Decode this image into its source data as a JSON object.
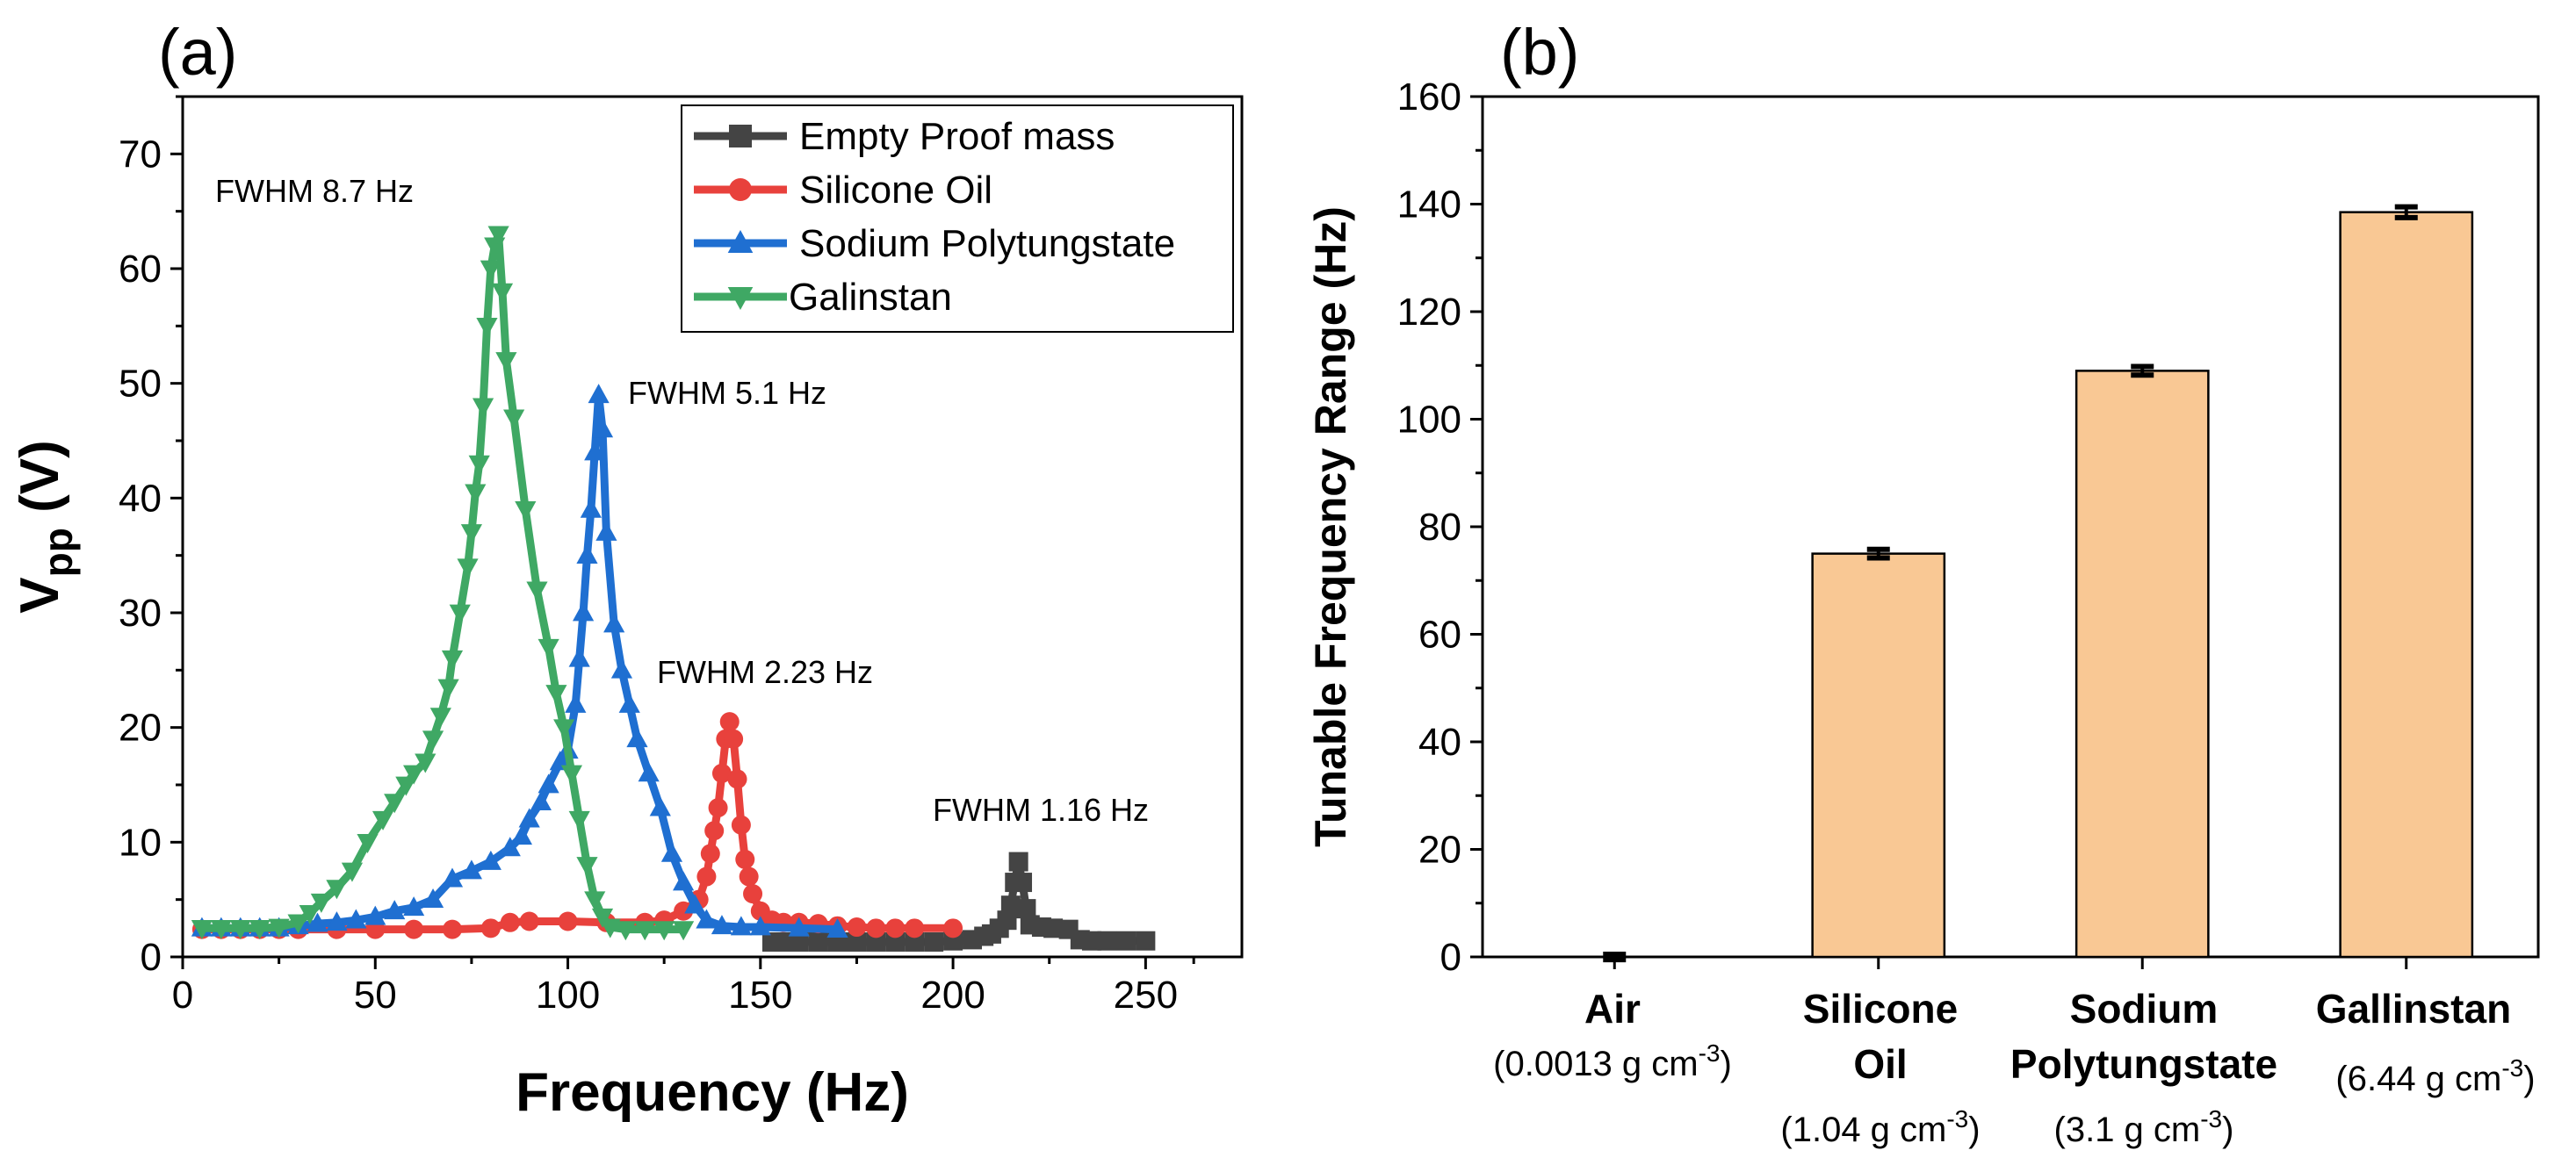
{
  "chart_data": [
    {
      "panel_label": "(a)",
      "type": "line",
      "xlabel": "Frequency (Hz)",
      "ylabel_main": "V",
      "ylabel_sub": "pp",
      "ylabel_unit": " (V)",
      "xlim": [
        0,
        275
      ],
      "ylim": [
        0,
        75
      ],
      "xticks": [
        0,
        50,
        100,
        150,
        200,
        250
      ],
      "yticks": [
        0,
        10,
        20,
        30,
        40,
        50,
        60,
        70
      ],
      "legend_position": "top-right",
      "series": [
        {
          "name": "Empty Proof mass",
          "color": "#444444",
          "marker": "square",
          "points": [
            [
              153,
              1.3
            ],
            [
              156,
              1.3
            ],
            [
              160,
              1.3
            ],
            [
              165,
              1.3
            ],
            [
              170,
              1.3
            ],
            [
              175,
              1.3
            ],
            [
              180,
              1.3
            ],
            [
              185,
              1.3
            ],
            [
              190,
              1.3
            ],
            [
              195,
              1.3
            ],
            [
              200,
              1.4
            ],
            [
              205,
              1.5
            ],
            [
              208,
              1.8
            ],
            [
              210,
              2.0
            ],
            [
              212,
              2.5
            ],
            [
              214,
              3.2
            ],
            [
              215,
              4.5
            ],
            [
              216,
              6.5
            ],
            [
              217,
              8.3
            ],
            [
              218,
              6.5
            ],
            [
              219,
              4.2
            ],
            [
              220,
              2.8
            ],
            [
              223,
              2.6
            ],
            [
              226,
              2.5
            ],
            [
              230,
              2.4
            ],
            [
              233,
              1.5
            ],
            [
              236,
              1.4
            ],
            [
              240,
              1.4
            ],
            [
              245,
              1.4
            ],
            [
              250,
              1.4
            ]
          ]
        },
        {
          "name": "Silicone Oil",
          "color": "#e8413c",
          "marker": "circle",
          "points": [
            [
              5,
              2.4
            ],
            [
              10,
              2.4
            ],
            [
              15,
              2.4
            ],
            [
              20,
              2.4
            ],
            [
              25,
              2.4
            ],
            [
              30,
              2.4
            ],
            [
              40,
              2.4
            ],
            [
              50,
              2.4
            ],
            [
              60,
              2.4
            ],
            [
              70,
              2.4
            ],
            [
              80,
              2.5
            ],
            [
              85,
              3.0
            ],
            [
              90,
              3.1
            ],
            [
              100,
              3.1
            ],
            [
              110,
              3.0
            ],
            [
              120,
              3.0
            ],
            [
              125,
              3.2
            ],
            [
              130,
              4.0
            ],
            [
              134,
              5.0
            ],
            [
              136,
              7.0
            ],
            [
              137,
              9.0
            ],
            [
              138,
              11
            ],
            [
              139,
              13
            ],
            [
              140,
              16
            ],
            [
              141,
              19
            ],
            [
              142,
              20.5
            ],
            [
              143,
              19
            ],
            [
              144,
              15.5
            ],
            [
              145,
              11.5
            ],
            [
              146,
              8.5
            ],
            [
              147,
              7.0
            ],
            [
              148,
              5.5
            ],
            [
              150,
              4.0
            ],
            [
              153,
              3.2
            ],
            [
              156,
              3.0
            ],
            [
              160,
              3.0
            ],
            [
              165,
              2.9
            ],
            [
              170,
              2.7
            ],
            [
              175,
              2.6
            ],
            [
              180,
              2.5
            ],
            [
              185,
              2.5
            ],
            [
              190,
              2.5
            ],
            [
              200,
              2.5
            ]
          ]
        },
        {
          "name": "Sodium Polytungstate",
          "color": "#1f6fd1",
          "marker": "triangle-up",
          "points": [
            [
              5,
              2.5
            ],
            [
              10,
              2.5
            ],
            [
              15,
              2.5
            ],
            [
              20,
              2.5
            ],
            [
              25,
              2.5
            ],
            [
              30,
              2.7
            ],
            [
              35,
              2.9
            ],
            [
              40,
              3.0
            ],
            [
              45,
              3.2
            ],
            [
              50,
              3.5
            ],
            [
              55,
              4.0
            ],
            [
              60,
              4.3
            ],
            [
              65,
              5.0
            ],
            [
              70,
              6.8
            ],
            [
              75,
              7.5
            ],
            [
              80,
              8.3
            ],
            [
              85,
              9.5
            ],
            [
              88,
              10.5
            ],
            [
              90,
              12
            ],
            [
              93,
              13.5
            ],
            [
              95,
              15
            ],
            [
              98,
              17
            ],
            [
              100,
              18
            ],
            [
              102,
              22
            ],
            [
              103,
              26
            ],
            [
              104,
              30
            ],
            [
              105,
              35
            ],
            [
              106,
              39
            ],
            [
              107,
              44
            ],
            [
              108,
              49
            ],
            [
              109,
              46
            ],
            [
              110,
              37
            ],
            [
              112,
              29
            ],
            [
              114,
              25
            ],
            [
              116,
              22
            ],
            [
              118,
              19
            ],
            [
              121,
              16
            ],
            [
              124,
              13
            ],
            [
              127,
              9.0
            ],
            [
              130,
              6.5
            ],
            [
              133,
              4.5
            ],
            [
              136,
              3.2
            ],
            [
              140,
              2.7
            ],
            [
              145,
              2.6
            ],
            [
              150,
              2.6
            ],
            [
              160,
              2.5
            ],
            [
              170,
              2.4
            ]
          ]
        },
        {
          "name": "Galinstan",
          "color": "#3fa864",
          "marker": "triangle-down",
          "points": [
            [
              5,
              2.5
            ],
            [
              10,
              2.5
            ],
            [
              15,
              2.5
            ],
            [
              20,
              2.5
            ],
            [
              25,
              2.6
            ],
            [
              30,
              3.0
            ],
            [
              33,
              3.8
            ],
            [
              36,
              4.8
            ],
            [
              40,
              6.0
            ],
            [
              44,
              7.5
            ],
            [
              48,
              10
            ],
            [
              52,
              12
            ],
            [
              55,
              13.5
            ],
            [
              58,
              15
            ],
            [
              60,
              16
            ],
            [
              63,
              17
            ],
            [
              65,
              19
            ],
            [
              67,
              21
            ],
            [
              69,
              23.5
            ],
            [
              70,
              26
            ],
            [
              72,
              30
            ],
            [
              74,
              34
            ],
            [
              75,
              37
            ],
            [
              76,
              40.5
            ],
            [
              77,
              43
            ],
            [
              78,
              48
            ],
            [
              79,
              55
            ],
            [
              80,
              60
            ],
            [
              81,
              62
            ],
            [
              82,
              63
            ],
            [
              83,
              58
            ],
            [
              84,
              52
            ],
            [
              86,
              47
            ],
            [
              89,
              39
            ],
            [
              92,
              32
            ],
            [
              95,
              27
            ],
            [
              97,
              23
            ],
            [
              99,
              20
            ],
            [
              101,
              16
            ],
            [
              103,
              12
            ],
            [
              105,
              8
            ],
            [
              107,
              5
            ],
            [
              109,
              3.5
            ],
            [
              111,
              2.6
            ],
            [
              115,
              2.4
            ],
            [
              120,
              2.4
            ],
            [
              125,
              2.4
            ],
            [
              130,
              2.4
            ]
          ]
        }
      ],
      "annotations": [
        "FWHM 8.7 Hz",
        "FWHM 5.1 Hz",
        "FWHM 2.23 Hz",
        "FWHM 1.16 Hz"
      ]
    },
    {
      "panel_label": "(b)",
      "type": "bar",
      "ylabel": "Tunable Frequency Range (Hz)",
      "ylim": [
        0,
        160
      ],
      "yticks": [
        0,
        20,
        40,
        60,
        80,
        100,
        120,
        140,
        160
      ],
      "bar_color": "#f9c894",
      "categories": [
        {
          "line1": "Air",
          "line2": "",
          "density_value": "(0.0013 g cm",
          "density_exp": "-3",
          "density_close": ")"
        },
        {
          "line1": "Silicone",
          "line2": "Oil",
          "density_value": "(1.04 g cm",
          "density_exp": "-3",
          "density_close": ")"
        },
        {
          "line1": "Sodium",
          "line2": "Polytungstate",
          "density_value": "(3.1 g cm",
          "density_exp": "-3",
          "density_close": ")"
        },
        {
          "line1": "Gallinstan",
          "line2": "",
          "density_value": "(6.44 g cm",
          "density_exp": "-3",
          "density_close": ")"
        }
      ],
      "values": [
        0,
        75,
        109,
        138.5
      ],
      "errors": [
        0.5,
        0.8,
        0.8,
        1.0
      ]
    }
  ]
}
